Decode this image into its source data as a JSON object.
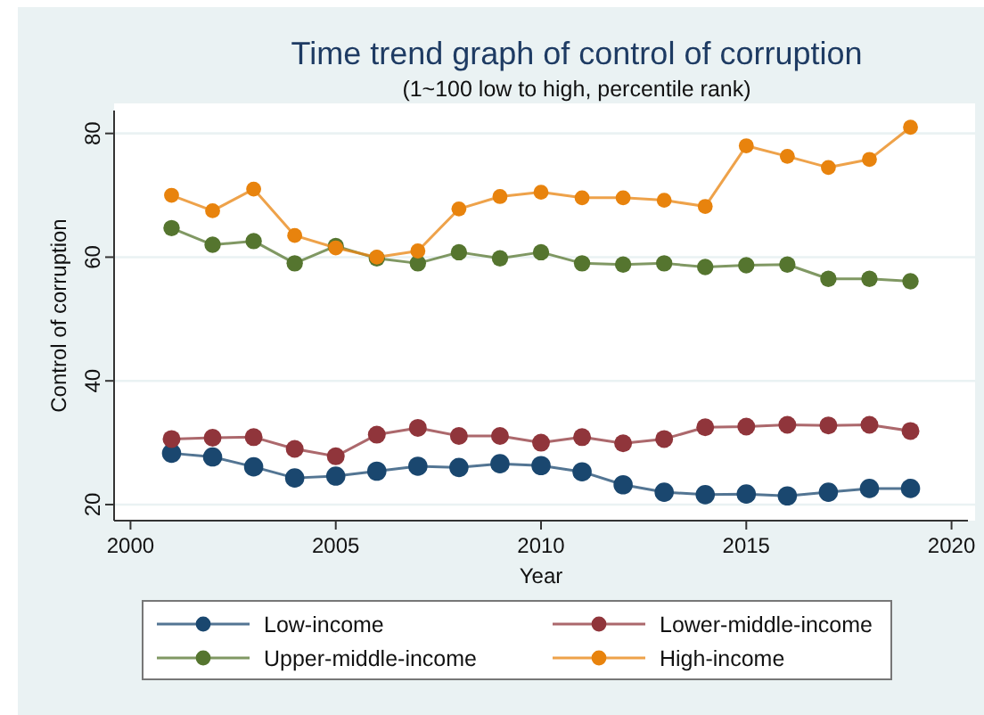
{
  "chart_data": {
    "type": "line",
    "title": "Time trend graph of control of corruption",
    "subtitle": "(1~100 low to high, percentile rank)",
    "xlabel": "Year",
    "ylabel": "Control of corruption",
    "x": [
      2001,
      2002,
      2003,
      2004,
      2005,
      2006,
      2007,
      2008,
      2009,
      2010,
      2011,
      2012,
      2013,
      2014,
      2015,
      2016,
      2017,
      2018,
      2019
    ],
    "xlim": [
      1999.6,
      2020.4
    ],
    "xticks": [
      2000,
      2005,
      2010,
      2015,
      2020
    ],
    "ylim": [
      17.4,
      83.7
    ],
    "yticks": [
      20,
      40,
      60,
      80
    ],
    "grid": "y",
    "legend": "bottom",
    "marker": "circle",
    "line_style": "solid",
    "series": [
      {
        "name": "Low-income",
        "color": "#1a476f",
        "values": [
          28.3,
          27.7,
          26.1,
          24.3,
          24.6,
          25.4,
          26.2,
          26,
          26.6,
          26.3,
          25.3,
          23.2,
          22,
          21.6,
          21.7,
          21.4,
          22,
          22.6,
          22.6
        ]
      },
      {
        "name": "Lower-middle-income",
        "color": "#90353b",
        "values": [
          30.6,
          30.8,
          30.9,
          29,
          27.8,
          31.3,
          32.4,
          31.1,
          31.1,
          30,
          30.9,
          29.9,
          30.6,
          32.5,
          32.6,
          32.9,
          32.8,
          32.9,
          31.9
        ]
      },
      {
        "name": "Upper-middle-income",
        "color": "#55752f",
        "values": [
          64.7,
          62,
          62.6,
          59,
          61.8,
          59.8,
          59,
          60.8,
          59.8,
          60.8,
          59,
          58.8,
          59,
          58.4,
          58.7,
          58.8,
          56.5,
          56.5,
          56.1
        ]
      },
      {
        "name": "High-income",
        "color": "#e8830d",
        "values": [
          70,
          67.5,
          71,
          63.5,
          61.5,
          60,
          61,
          67.8,
          69.8,
          70.5,
          69.6,
          69.6,
          69.2,
          68.2,
          78,
          76.3,
          74.5,
          75.8,
          81
        ]
      }
    ]
  }
}
